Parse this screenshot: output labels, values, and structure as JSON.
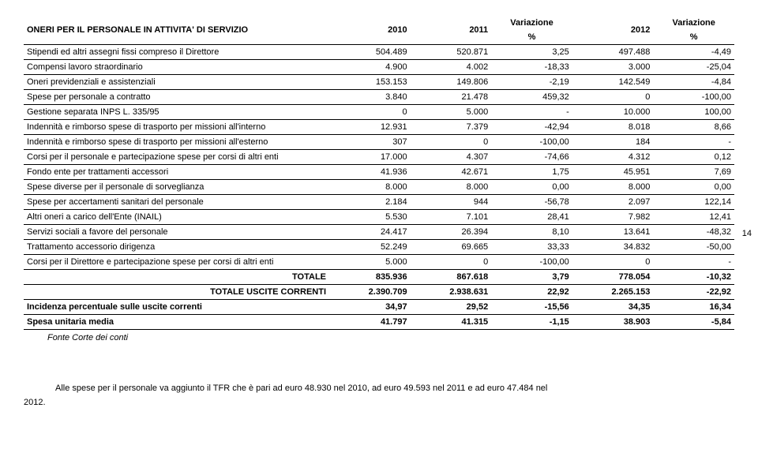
{
  "page_number": "14",
  "header": {
    "title": "ONERI PER IL PERSONALE IN ATTIVITA' DI SERVIZIO",
    "y2010": "2010",
    "y2011": "2011",
    "var1_top": "Variazione",
    "var1_bot": "%",
    "y2012": "2012",
    "var2_top": "Variazione",
    "var2_bot": "%"
  },
  "rows": [
    {
      "label": "Stipendi ed altri assegni fissi compreso il Direttore",
      "c1": "504.489",
      "c2": "520.871",
      "c3": "3,25",
      "c4": "497.488",
      "c5": "-4,49",
      "bold": false
    },
    {
      "label": "Compensi lavoro straordinario",
      "c1": "4.900",
      "c2": "4.002",
      "c3": "-18,33",
      "c4": "3.000",
      "c5": "-25,04",
      "bold": false
    },
    {
      "label": "Oneri previdenziali e assistenziali",
      "c1": "153.153",
      "c2": "149.806",
      "c3": "-2,19",
      "c4": "142.549",
      "c5": "-4,84",
      "bold": false
    },
    {
      "label": "Spese per personale a contratto",
      "c1": "3.840",
      "c2": "21.478",
      "c3": "459,32",
      "c4": "0",
      "c5": "-100,00",
      "bold": false
    },
    {
      "label": "Gestione separata INPS L. 335/95",
      "c1": "0",
      "c2": "5.000",
      "c3": "-",
      "c4": "10.000",
      "c5": "100,00",
      "bold": false
    },
    {
      "label": "Indennità e rimborso spese di trasporto per missioni all'interno",
      "c1": "12.931",
      "c2": "7.379",
      "c3": "-42,94",
      "c4": "8.018",
      "c5": "8,66",
      "bold": false
    },
    {
      "label": "Indennità e rimborso spese di trasporto per missioni all'esterno",
      "c1": "307",
      "c2": "0",
      "c3": "-100,00",
      "c4": "184",
      "c5": "-",
      "bold": false
    },
    {
      "label": "Corsi per il personale e partecipazione spese per corsi di altri enti",
      "c1": "17.000",
      "c2": "4.307",
      "c3": "-74,66",
      "c4": "4.312",
      "c5": "0,12",
      "bold": false
    },
    {
      "label": "Fondo ente per trattamenti accessori",
      "c1": "41.936",
      "c2": "42.671",
      "c3": "1,75",
      "c4": "45.951",
      "c5": "7,69",
      "bold": false
    },
    {
      "label": "Spese diverse per il personale di sorveglianza",
      "c1": "8.000",
      "c2": "8.000",
      "c3": "0,00",
      "c4": "8.000",
      "c5": "0,00",
      "bold": false
    },
    {
      "label": "Spese per accertamenti sanitari del personale",
      "c1": "2.184",
      "c2": "944",
      "c3": "-56,78",
      "c4": "2.097",
      "c5": "122,14",
      "bold": false
    },
    {
      "label": "Altri oneri a carico dell'Ente (INAIL)",
      "c1": "5.530",
      "c2": "7.101",
      "c3": "28,41",
      "c4": "7.982",
      "c5": "12,41",
      "bold": false
    },
    {
      "label": "Servizi sociali a favore del personale",
      "c1": "24.417",
      "c2": "26.394",
      "c3": "8,10",
      "c4": "13.641",
      "c5": "-48,32",
      "bold": false
    },
    {
      "label": "Trattamento accessorio dirigenza",
      "c1": "52.249",
      "c2": "69.665",
      "c3": "33,33",
      "c4": "34.832",
      "c5": "-50,00",
      "bold": false
    },
    {
      "label": "Corsi per il Direttore e partecipazione spese per corsi di altri enti",
      "c1": "5.000",
      "c2": "0",
      "c3": "-100,00",
      "c4": "0",
      "c5": "-",
      "bold": false
    },
    {
      "label": "TOTALE",
      "c1": "835.936",
      "c2": "867.618",
      "c3": "3,79",
      "c4": "778.054",
      "c5": "-10,32",
      "bold": true,
      "right": true
    },
    {
      "label": "TOTALE USCITE CORRENTI",
      "c1": "2.390.709",
      "c2": "2.938.631",
      "c3": "22,92",
      "c4": "2.265.153",
      "c5": "-22,92",
      "bold": true,
      "right": true
    },
    {
      "label": "Incidenza percentuale sulle uscite correnti",
      "c1": "34,97",
      "c2": "29,52",
      "c3": "-15,56",
      "c4": "34,35",
      "c5": "16,34",
      "bold": true
    },
    {
      "label": "Spesa unitaria media",
      "c1": "41.797",
      "c2": "41.315",
      "c3": "-1,15",
      "c4": "38.903",
      "c5": "-5,84",
      "bold": true
    }
  ],
  "footnote": "Fonte Corte dei conti",
  "paragraph_pre": "Alle le spese per il personale va aggiunto il TFR che è pari ad euro 48.930 nel 2010, ad euro 49.593 nel 2011 e ad euro 47.484 nel",
  "paragraph": "Alle spese per il personale va aggiunto il TFR che è pari ad euro 48.930 nel 2010, ad euro 49.593 nel 2011 e ad euro 47.484 nel",
  "paragraph_year": "2012."
}
